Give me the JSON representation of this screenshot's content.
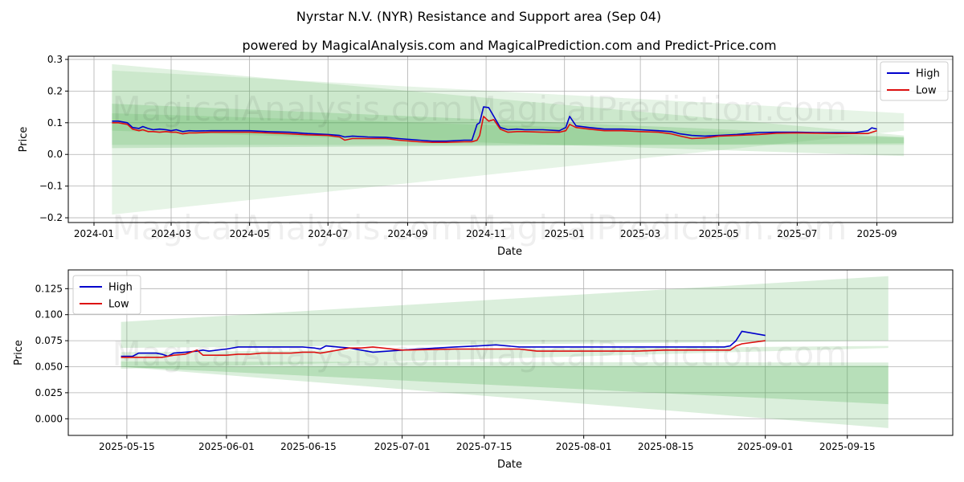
{
  "title": "Nyrstar N.V. (NYR) Resistance and Support area (Sep 04)",
  "subtitle": "powered by MagicalAnalysis.com and MagicalPrediction.com and Predict-Price.com",
  "watermarks": [
    "MagicalAnalysis.com",
    "MagicalPrediction.com"
  ],
  "colors": {
    "high": "#0000cc",
    "low": "#dd1111",
    "band": "#4caf50"
  },
  "chart_data": [
    {
      "type": "line",
      "xlabel": "Date",
      "ylabel": "Price",
      "xlim": [
        "2023-12-12",
        "2025-10-30"
      ],
      "ylim": [
        -0.215,
        0.31
      ],
      "grid": true,
      "legend": "top-right",
      "x_ticks": [
        "2024-01",
        "2024-03",
        "2024-05",
        "2024-07",
        "2024-09",
        "2024-11",
        "2025-01",
        "2025-03",
        "2025-05",
        "2025-07",
        "2025-09"
      ],
      "y_ticks": [
        "0.3",
        "0.2",
        "0.1",
        "0.0",
        "−0.1",
        "−0.2"
      ],
      "bands": [
        {
          "x": [
            "2024-01-15",
            "2025-09-22"
          ],
          "upper": [
            0.285,
            0.06
          ],
          "lower": [
            0.03,
            0.03
          ],
          "opacity": 0.17
        },
        {
          "x": [
            "2024-01-15",
            "2025-09-22"
          ],
          "upper": [
            0.265,
            0.13
          ],
          "lower": [
            -0.19,
            0.075
          ],
          "opacity": 0.14
        },
        {
          "x": [
            "2024-01-15",
            "2025-09-22"
          ],
          "upper": [
            0.16,
            0.055
          ],
          "lower": [
            0.02,
            0.035
          ],
          "opacity": 0.22
        },
        {
          "x": [
            "2024-01-15",
            "2025-09-22"
          ],
          "upper": [
            0.13,
            0.053
          ],
          "lower": [
            0.075,
            -0.005
          ],
          "opacity": 0.18
        }
      ],
      "series": [
        {
          "name": "High",
          "x": [
            "2024-01-15",
            "2024-01-20",
            "2024-01-27",
            "2024-01-31",
            "2024-02-05",
            "2024-02-08",
            "2024-02-12",
            "2024-02-16",
            "2024-02-21",
            "2024-02-26",
            "2024-03-01",
            "2024-03-05",
            "2024-03-10",
            "2024-03-15",
            "2024-03-20",
            "2024-04-01",
            "2024-04-15",
            "2024-05-01",
            "2024-05-15",
            "2024-06-01",
            "2024-06-15",
            "2024-07-01",
            "2024-07-10",
            "2024-07-14",
            "2024-07-20",
            "2024-08-01",
            "2024-08-15",
            "2024-08-25",
            "2024-09-10",
            "2024-09-20",
            "2024-10-01",
            "2024-10-15",
            "2024-10-21",
            "2024-10-25",
            "2024-10-27",
            "2024-10-30",
            "2024-11-03",
            "2024-11-07",
            "2024-11-12",
            "2024-11-18",
            "2024-11-25",
            "2024-12-01",
            "2024-12-15",
            "2024-12-28",
            "2025-01-02",
            "2025-01-05",
            "2025-01-10",
            "2025-01-20",
            "2025-02-01",
            "2025-02-15",
            "2025-03-01",
            "2025-03-15",
            "2025-03-25",
            "2025-04-01",
            "2025-04-10",
            "2025-04-20",
            "2025-05-01",
            "2025-05-15",
            "2025-06-01",
            "2025-06-15",
            "2025-07-01",
            "2025-07-15",
            "2025-08-01",
            "2025-08-15",
            "2025-08-25",
            "2025-08-28",
            "2025-09-01"
          ],
          "values": [
            0.105,
            0.105,
            0.1,
            0.085,
            0.082,
            0.088,
            0.082,
            0.078,
            0.08,
            0.078,
            0.075,
            0.078,
            0.072,
            0.075,
            0.074,
            0.075,
            0.075,
            0.075,
            0.072,
            0.07,
            0.066,
            0.063,
            0.06,
            0.055,
            0.058,
            0.055,
            0.054,
            0.05,
            0.045,
            0.042,
            0.042,
            0.045,
            0.045,
            0.095,
            0.1,
            0.15,
            0.148,
            0.12,
            0.085,
            0.078,
            0.08,
            0.078,
            0.078,
            0.075,
            0.085,
            0.12,
            0.09,
            0.085,
            0.08,
            0.08,
            0.078,
            0.075,
            0.072,
            0.065,
            0.06,
            0.058,
            0.06,
            0.063,
            0.069,
            0.07,
            0.07,
            0.069,
            0.069,
            0.069,
            0.075,
            0.084,
            0.08
          ]
        },
        {
          "name": "Low",
          "x": [
            "2024-01-15",
            "2024-01-20",
            "2024-01-27",
            "2024-01-31",
            "2024-02-05",
            "2024-02-08",
            "2024-02-12",
            "2024-02-16",
            "2024-02-21",
            "2024-02-26",
            "2024-03-01",
            "2024-03-05",
            "2024-03-10",
            "2024-03-15",
            "2024-03-20",
            "2024-04-01",
            "2024-04-15",
            "2024-05-01",
            "2024-05-15",
            "2024-06-01",
            "2024-06-15",
            "2024-07-01",
            "2024-07-10",
            "2024-07-14",
            "2024-07-20",
            "2024-08-01",
            "2024-08-15",
            "2024-08-25",
            "2024-09-10",
            "2024-09-20",
            "2024-10-01",
            "2024-10-15",
            "2024-10-21",
            "2024-10-25",
            "2024-10-27",
            "2024-10-30",
            "2024-11-03",
            "2024-11-07",
            "2024-11-12",
            "2024-11-18",
            "2024-11-25",
            "2024-12-01",
            "2024-12-15",
            "2024-12-28",
            "2025-01-02",
            "2025-01-05",
            "2025-01-10",
            "2025-01-20",
            "2025-02-01",
            "2025-02-15",
            "2025-03-01",
            "2025-03-15",
            "2025-03-25",
            "2025-04-01",
            "2025-04-10",
            "2025-04-20",
            "2025-05-01",
            "2025-05-15",
            "2025-06-01",
            "2025-06-15",
            "2025-07-01",
            "2025-07-15",
            "2025-08-01",
            "2025-08-15",
            "2025-08-25",
            "2025-08-28",
            "2025-09-01"
          ],
          "values": [
            0.1,
            0.1,
            0.095,
            0.08,
            0.075,
            0.078,
            0.072,
            0.072,
            0.07,
            0.072,
            0.07,
            0.07,
            0.065,
            0.068,
            0.068,
            0.07,
            0.07,
            0.07,
            0.068,
            0.065,
            0.062,
            0.06,
            0.055,
            0.045,
            0.05,
            0.05,
            0.05,
            0.045,
            0.04,
            0.038,
            0.038,
            0.04,
            0.04,
            0.045,
            0.06,
            0.12,
            0.105,
            0.11,
            0.08,
            0.07,
            0.072,
            0.072,
            0.07,
            0.07,
            0.075,
            0.095,
            0.085,
            0.08,
            0.075,
            0.075,
            0.072,
            0.07,
            0.065,
            0.058,
            0.05,
            0.052,
            0.058,
            0.06,
            0.063,
            0.067,
            0.068,
            0.067,
            0.066,
            0.066,
            0.066,
            0.07,
            0.075
          ]
        }
      ]
    },
    {
      "type": "line",
      "xlabel": "Date",
      "ylabel": "Price",
      "xlim": [
        "2025-05-05",
        "2025-10-03"
      ],
      "ylim": [
        -0.016,
        0.143
      ],
      "grid": true,
      "legend": "top-left",
      "x_ticks": [
        "2025-05-15",
        "2025-06-01",
        "2025-06-15",
        "2025-07-01",
        "2025-07-15",
        "2025-08-01",
        "2025-08-15",
        "2025-09-01",
        "2025-09-15"
      ],
      "y_ticks": [
        "0.125",
        "0.100",
        "0.075",
        "0.050",
        "0.025",
        "0.000"
      ],
      "bands": [
        {
          "x": [
            "2025-05-14",
            "2025-09-22"
          ],
          "upper": [
            0.093,
            0.137
          ],
          "lower": [
            0.068,
            0.075
          ],
          "opacity": 0.2
        },
        {
          "x": [
            "2025-05-14",
            "2025-09-22"
          ],
          "upper": [
            0.055,
            0.054
          ],
          "lower": [
            0.05,
            -0.009
          ],
          "opacity": 0.2
        },
        {
          "x": [
            "2025-05-14",
            "2025-09-22"
          ],
          "upper": [
            0.05,
            0.051
          ],
          "lower": [
            0.05,
            0.014
          ],
          "opacity": 0.25
        },
        {
          "x": [
            "2025-05-14",
            "2025-09-22"
          ],
          "upper": [
            0.064,
            0.07
          ],
          "lower": [
            0.048,
            0.068
          ],
          "opacity": 0.18
        }
      ],
      "series": [
        {
          "name": "High",
          "x": [
            "2025-05-14",
            "2025-05-16",
            "2025-05-17",
            "2025-05-19",
            "2025-05-20",
            "2025-05-21",
            "2025-05-22",
            "2025-05-23",
            "2025-05-25",
            "2025-05-27",
            "2025-05-28",
            "2025-05-29",
            "2025-06-01",
            "2025-06-03",
            "2025-06-05",
            "2025-06-07",
            "2025-06-10",
            "2025-06-12",
            "2025-06-14",
            "2025-06-16",
            "2025-06-17",
            "2025-06-18",
            "2025-06-20",
            "2025-06-22",
            "2025-06-24",
            "2025-06-26",
            "2025-07-01",
            "2025-07-10",
            "2025-07-14",
            "2025-07-17",
            "2025-07-21",
            "2025-07-24",
            "2025-08-01",
            "2025-08-10",
            "2025-08-15",
            "2025-08-18",
            "2025-08-20",
            "2025-08-23",
            "2025-08-25",
            "2025-08-26",
            "2025-08-27",
            "2025-08-28",
            "2025-09-01"
          ],
          "values": [
            0.06,
            0.06,
            0.063,
            0.063,
            0.063,
            0.062,
            0.06,
            0.063,
            0.064,
            0.065,
            0.066,
            0.065,
            0.067,
            0.069,
            0.069,
            0.069,
            0.069,
            0.069,
            0.069,
            0.068,
            0.067,
            0.07,
            0.069,
            0.068,
            0.066,
            0.064,
            0.066,
            0.069,
            0.07,
            0.071,
            0.069,
            0.069,
            0.069,
            0.069,
            0.069,
            0.069,
            0.069,
            0.069,
            0.069,
            0.07,
            0.075,
            0.084,
            0.08
          ]
        },
        {
          "name": "Low",
          "x": [
            "2025-05-14",
            "2025-05-16",
            "2025-05-17",
            "2025-05-19",
            "2025-05-20",
            "2025-05-21",
            "2025-05-22",
            "2025-05-23",
            "2025-05-25",
            "2025-05-27",
            "2025-05-28",
            "2025-05-29",
            "2025-06-01",
            "2025-06-03",
            "2025-06-05",
            "2025-06-07",
            "2025-06-10",
            "2025-06-12",
            "2025-06-14",
            "2025-06-16",
            "2025-06-17",
            "2025-06-18",
            "2025-06-20",
            "2025-06-22",
            "2025-06-24",
            "2025-06-26",
            "2025-07-01",
            "2025-07-10",
            "2025-07-14",
            "2025-07-17",
            "2025-07-21",
            "2025-07-24",
            "2025-08-01",
            "2025-08-10",
            "2025-08-15",
            "2025-08-18",
            "2025-08-20",
            "2025-08-23",
            "2025-08-25",
            "2025-08-26",
            "2025-08-27",
            "2025-08-28",
            "2025-09-01"
          ],
          "values": [
            0.059,
            0.059,
            0.059,
            0.059,
            0.059,
            0.059,
            0.06,
            0.061,
            0.062,
            0.066,
            0.061,
            0.061,
            0.061,
            0.062,
            0.062,
            0.063,
            0.063,
            0.063,
            0.064,
            0.064,
            0.063,
            0.064,
            0.066,
            0.068,
            0.068,
            0.069,
            0.066,
            0.067,
            0.067,
            0.067,
            0.067,
            0.065,
            0.065,
            0.065,
            0.066,
            0.066,
            0.066,
            0.066,
            0.066,
            0.066,
            0.07,
            0.072,
            0.075
          ]
        }
      ]
    }
  ]
}
